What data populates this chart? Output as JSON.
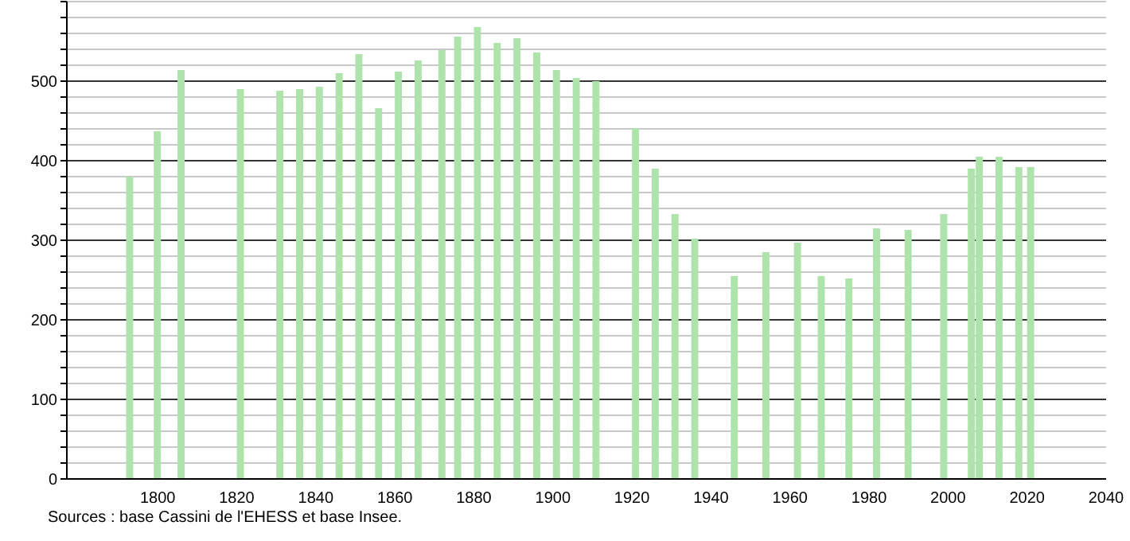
{
  "chart_data": {
    "type": "bar",
    "x": [
      1793,
      1800,
      1806,
      1821,
      1831,
      1836,
      1841,
      1846,
      1851,
      1856,
      1861,
      1866,
      1872,
      1876,
      1881,
      1886,
      1891,
      1896,
      1901,
      1906,
      1911,
      1921,
      1926,
      1931,
      1936,
      1946,
      1954,
      1962,
      1968,
      1975,
      1982,
      1990,
      1999,
      2006,
      2008,
      2013,
      2018,
      2021
    ],
    "values": [
      380,
      437,
      514,
      490,
      488,
      490,
      493,
      510,
      534,
      466,
      512,
      526,
      539,
      556,
      568,
      548,
      554,
      536,
      514,
      504,
      500,
      441,
      390,
      333,
      302,
      255,
      285,
      297,
      255,
      252,
      315,
      313,
      333,
      390,
      405,
      405,
      392,
      392
    ],
    "color": "#aee4ac",
    "xlim": [
      1777,
      2040
    ],
    "xticks": [
      1800,
      1820,
      1840,
      1860,
      1880,
      1900,
      1920,
      1940,
      1960,
      1980,
      2000,
      2020,
      2040
    ],
    "ylim": [
      0,
      600
    ],
    "yticks": [
      0,
      {
        "value": 20,
        "label": null
      },
      {
        "value": 40,
        "label": null
      },
      {
        "value": 60,
        "label": null
      },
      {
        "value": 80,
        "label": null
      },
      100,
      {
        "value": 120,
        "label": null
      },
      {
        "value": 140,
        "label": null
      },
      {
        "value": 160,
        "label": null
      },
      {
        "value": 180,
        "label": null
      },
      200,
      {
        "value": 220,
        "label": null
      },
      {
        "value": 240,
        "label": null
      },
      {
        "value": 260,
        "label": null
      },
      {
        "value": 280,
        "label": null
      },
      300,
      {
        "value": 320,
        "label": null
      },
      {
        "value": 340,
        "label": null
      },
      {
        "value": 360,
        "label": null
      },
      {
        "value": 380,
        "label": null
      },
      400,
      {
        "value": 420,
        "label": null
      },
      {
        "value": 440,
        "label": null
      },
      {
        "value": 460,
        "label": null
      },
      {
        "value": 480,
        "label": null
      },
      500,
      {
        "value": 520,
        "label": null
      },
      {
        "value": 540,
        "label": null
      },
      {
        "value": 560,
        "label": null
      },
      {
        "value": 580,
        "label": null
      },
      {
        "value": 600,
        "label": null
      }
    ],
    "grid": "y",
    "annotations": [
      "Sources : base Cassini de l'EHESS et base Insee."
    ]
  }
}
